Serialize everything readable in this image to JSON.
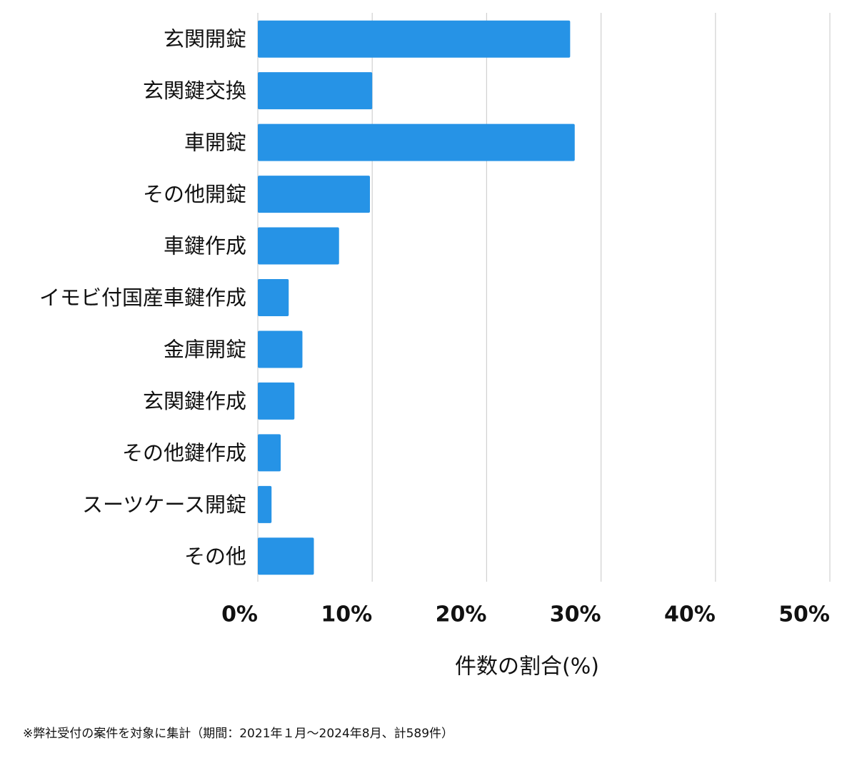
{
  "chart_data": {
    "type": "bar",
    "orientation": "horizontal",
    "categories": [
      "玄関開錠",
      "玄関鍵交換",
      "車開錠",
      "その他開錠",
      "車鍵作成",
      "イモビ付国産車鍵作成",
      "金庫開錠",
      "玄関鍵作成",
      "その他鍵作成",
      "スーツケース開錠",
      "その他"
    ],
    "values": [
      27.3,
      10.0,
      27.7,
      9.8,
      7.1,
      2.7,
      3.9,
      3.2,
      2.0,
      1.2,
      4.9
    ],
    "color": "#2693e6",
    "xlim": [
      0,
      50
    ],
    "xticks": [
      {
        "value": 0,
        "label": "0%"
      },
      {
        "value": 10,
        "label": "10%"
      },
      {
        "value": 20,
        "label": "20%"
      },
      {
        "value": 30,
        "label": "30%"
      },
      {
        "value": 40,
        "label": "40%"
      },
      {
        "value": 50,
        "label": "50%"
      }
    ],
    "grid": true,
    "x_label": "件数の割合(%)",
    "footnote": "※弊社受付の案件を対象に集計（期間：2021年１月〜2024年8月、計589件）"
  }
}
